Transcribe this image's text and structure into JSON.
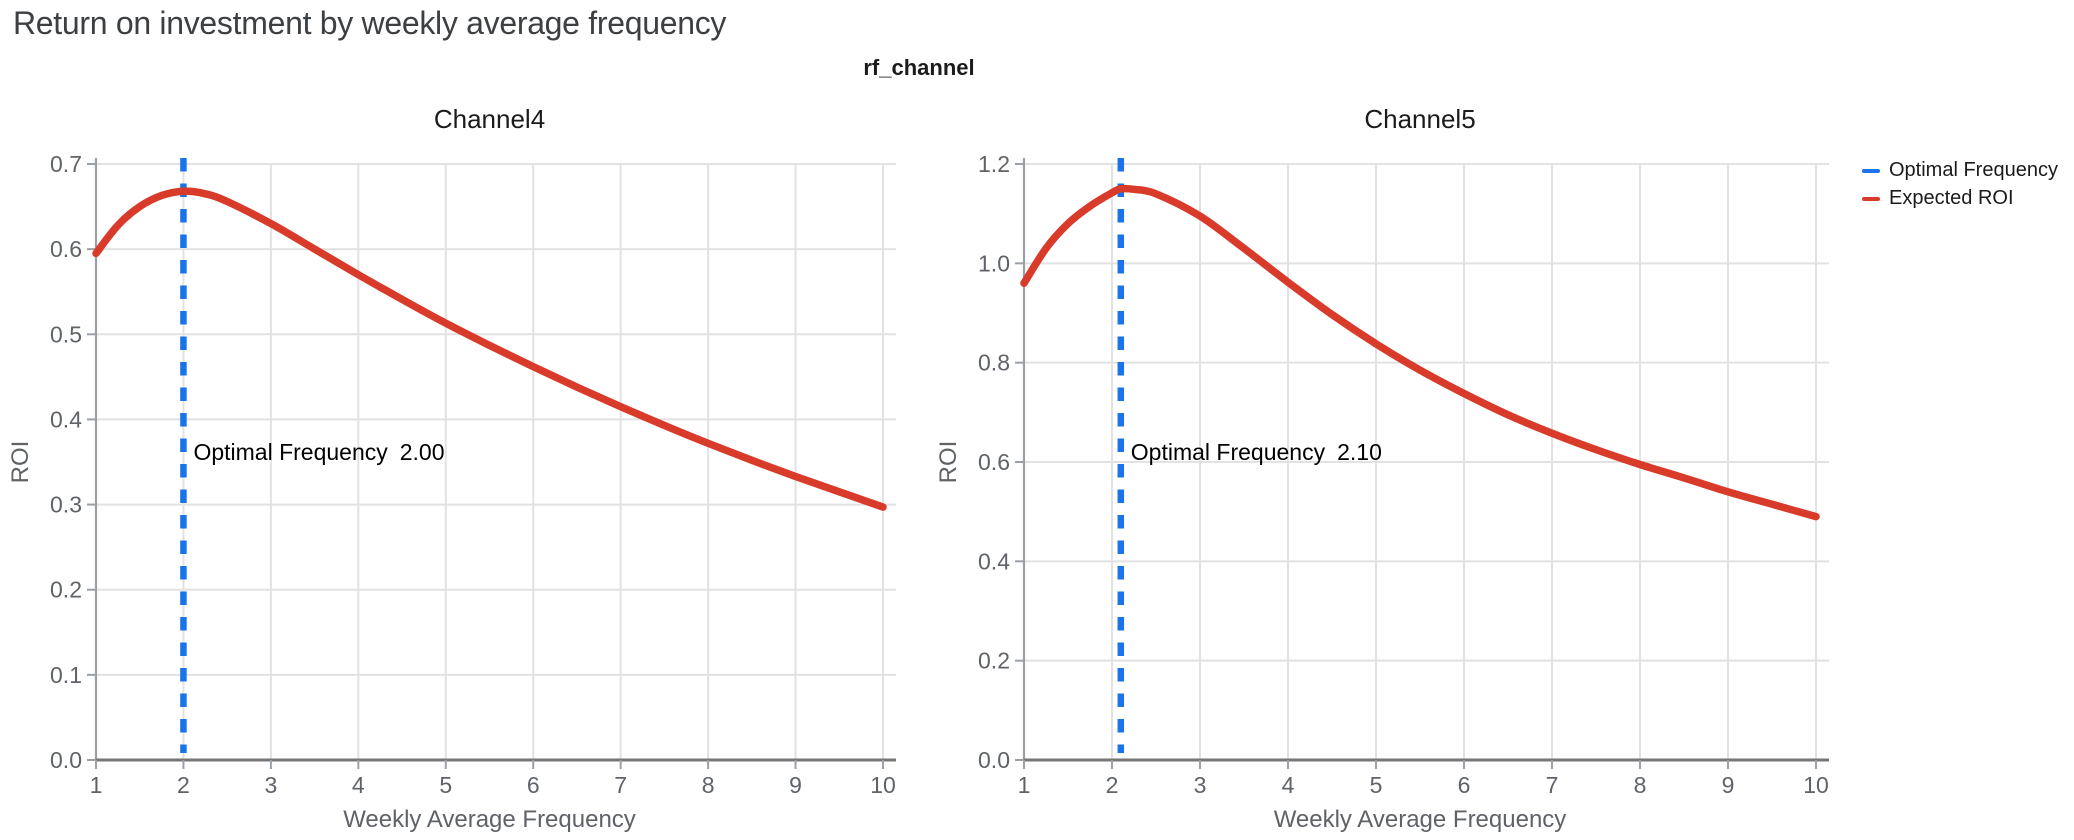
{
  "page": {
    "title": "Return on investment by weekly average frequency",
    "facet_label": "rf_channel"
  },
  "legend": {
    "items": [
      {
        "label": "Optimal Frequency",
        "color": "#1a73e8"
      },
      {
        "label": "Expected ROI",
        "color": "#d93b2b"
      }
    ]
  },
  "colors": {
    "optimal_frequency_line": "#1a73e8",
    "expected_roi_line": "#d93b2b",
    "grid": "#e2e2e2",
    "x_axis": "#757575",
    "y_axis": "#9aa0a6",
    "tick": "#9aa0a6",
    "tick_label": "#5f6368",
    "axis_title": "#5f6368",
    "subplot_title": "#1b1b1b",
    "annotation": "#000000"
  },
  "chart_data": [
    {
      "type": "line",
      "title": "Channel4",
      "xlabel": "Weekly Average Frequency",
      "ylabel": "ROI",
      "xlim": [
        1,
        10
      ],
      "ylim": [
        0,
        0.7
      ],
      "grid": true,
      "xtick_values": [
        1,
        2,
        3,
        4,
        5,
        6,
        7,
        8,
        9,
        10
      ],
      "xtick_labels": [
        "1",
        "2",
        "3",
        "4",
        "5",
        "6",
        "7",
        "8",
        "9",
        "10"
      ],
      "ytick_values": [
        0,
        0.1,
        0.2,
        0.3,
        0.4,
        0.5,
        0.6,
        0.7
      ],
      "ytick_labels": [
        "0.0",
        "0.1",
        "0.2",
        "0.3",
        "0.4",
        "0.5",
        "0.6",
        "0.7"
      ],
      "optimal_frequency": 2.0,
      "annotation": {
        "label": "Optimal Frequency",
        "value": "2.00"
      },
      "series": [
        {
          "name": "Expected ROI",
          "x": [
            1,
            1.25,
            1.5,
            1.75,
            2,
            2.25,
            2.5,
            3,
            3.5,
            4,
            4.5,
            5,
            5.5,
            6,
            6.5,
            7,
            7.5,
            8,
            8.5,
            9,
            9.5,
            10
          ],
          "y": [
            0.595,
            0.628,
            0.65,
            0.663,
            0.668,
            0.665,
            0.656,
            0.63,
            0.6,
            0.57,
            0.541,
            0.513,
            0.487,
            0.462,
            0.438,
            0.415,
            0.393,
            0.372,
            0.352,
            0.333,
            0.315,
            0.297
          ]
        }
      ]
    },
    {
      "type": "line",
      "title": "Channel5",
      "xlabel": "Weekly Average Frequency",
      "ylabel": "ROI",
      "xlim": [
        1,
        10
      ],
      "ylim": [
        0,
        1.2
      ],
      "grid": true,
      "xtick_values": [
        1,
        2,
        3,
        4,
        5,
        6,
        7,
        8,
        9,
        10
      ],
      "xtick_labels": [
        "1",
        "2",
        "3",
        "4",
        "5",
        "6",
        "7",
        "8",
        "9",
        "10"
      ],
      "ytick_values": [
        0,
        0.2,
        0.4,
        0.6,
        0.8,
        1.0,
        1.2
      ],
      "ytick_labels": [
        "0.0",
        "0.2",
        "0.4",
        "0.6",
        "0.8",
        "1.0",
        "1.2"
      ],
      "optimal_frequency": 2.1,
      "annotation": {
        "label": "Optimal Frequency",
        "value": "2.10"
      },
      "series": [
        {
          "name": "Expected ROI",
          "x": [
            1,
            1.25,
            1.5,
            1.75,
            2,
            2.1,
            2.25,
            2.5,
            3,
            3.5,
            4,
            4.5,
            5,
            5.5,
            6,
            6.5,
            7,
            7.5,
            8,
            8.5,
            9,
            9.5,
            10
          ],
          "y": [
            0.96,
            1.03,
            1.08,
            1.115,
            1.142,
            1.15,
            1.149,
            1.14,
            1.095,
            1.03,
            0.962,
            0.897,
            0.838,
            0.785,
            0.738,
            0.695,
            0.658,
            0.625,
            0.595,
            0.568,
            0.54,
            0.515,
            0.49
          ]
        }
      ]
    }
  ]
}
